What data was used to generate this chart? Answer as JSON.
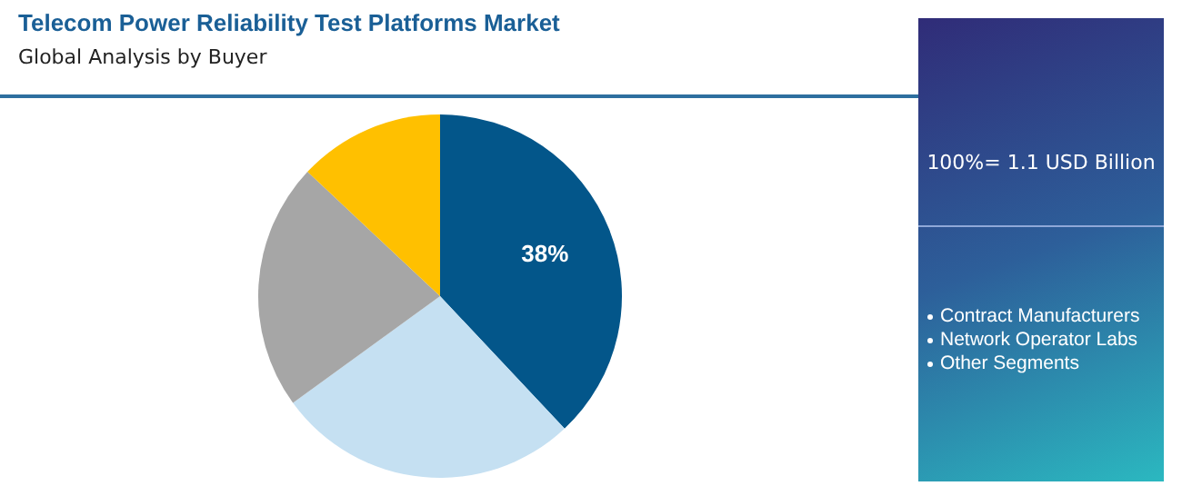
{
  "chart_data": {
    "type": "pie",
    "title": "Telecom Power Reliability Test Platforms Market",
    "subtitle": "Global Analysis by Buyer",
    "categories": [
      null,
      null,
      null,
      null
    ],
    "values": [
      38,
      27,
      22,
      13
    ],
    "colors": [
      "#03568a",
      "#c5e0f2",
      "#a6a6a6",
      "#ffc000"
    ],
    "value_labels": [
      "38%",
      null,
      null,
      null
    ],
    "annotations": [
      "100%= 1.1 USD Billion",
      "Contract Manufacturers",
      "Network Operator Labs",
      "Other Segments"
    ]
  }
}
